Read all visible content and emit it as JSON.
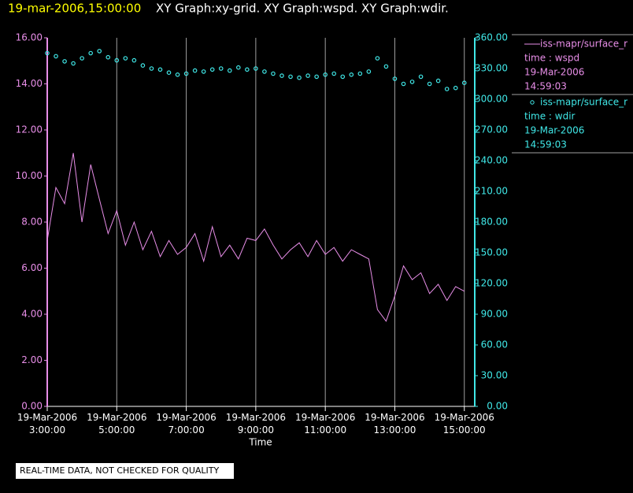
{
  "chart_data": {
    "type": "line",
    "title_time": "19-mar-2006,15:00:00",
    "title": "XY Graph:xy-grid.  XY Graph:wspd.  XY Graph:wdir.",
    "xlabel": "Time",
    "note": "REAL-TIME DATA, NOT CHECKED FOR QUALITY",
    "x": [
      3.0,
      3.25,
      3.5,
      3.75,
      4.0,
      4.25,
      4.5,
      4.75,
      5.0,
      5.25,
      5.5,
      5.75,
      6.0,
      6.25,
      6.5,
      6.75,
      7.0,
      7.25,
      7.5,
      7.75,
      8.0,
      8.25,
      8.5,
      8.75,
      9.0,
      9.25,
      9.5,
      9.75,
      10.0,
      10.25,
      10.5,
      10.75,
      11.0,
      11.25,
      11.5,
      11.75,
      12.0,
      12.25,
      12.5,
      12.75,
      13.0,
      13.25,
      13.5,
      13.75,
      14.0,
      14.25,
      14.5,
      14.75,
      15.0
    ],
    "xlim": [
      3,
      15.3
    ],
    "xticks": [
      {
        "value": 3,
        "label": "19-Mar-2006 3:00:00"
      },
      {
        "value": 5,
        "label": "19-Mar-2006 5:00:00"
      },
      {
        "value": 7,
        "label": "19-Mar-2006 7:00:00"
      },
      {
        "value": 9,
        "label": "19-Mar-2006 9:00:00"
      },
      {
        "value": 11,
        "label": "19-Mar-2006 11:00:00"
      },
      {
        "value": 13,
        "label": "19-Mar-2006 13:00:00"
      },
      {
        "value": 15,
        "label": "19-Mar-2006 15:00:00"
      }
    ],
    "ylim": [
      0,
      16
    ],
    "yticks": [
      {
        "value": 0,
        "label": "0.00"
      },
      {
        "value": 2,
        "label": "2.00"
      },
      {
        "value": 4,
        "label": "4.00"
      },
      {
        "value": 6,
        "label": "6.00"
      },
      {
        "value": 8,
        "label": "8.00"
      },
      {
        "value": 10,
        "label": "10.00"
      },
      {
        "value": 12,
        "label": "12.00"
      },
      {
        "value": 14,
        "label": "14.00"
      },
      {
        "value": 16,
        "label": "16.00"
      }
    ],
    "y2lim": [
      0,
      360
    ],
    "y2ticks": [
      {
        "value": 0,
        "label": "0.00"
      },
      {
        "value": 30,
        "label": "30.00"
      },
      {
        "value": 60,
        "label": "60.00"
      },
      {
        "value": 90,
        "label": "90.00"
      },
      {
        "value": 120,
        "label": "120.00"
      },
      {
        "value": 150,
        "label": "150.00"
      },
      {
        "value": 180,
        "label": "180.00"
      },
      {
        "value": 210,
        "label": "210.00"
      },
      {
        "value": 240,
        "label": "240.00"
      },
      {
        "value": 270,
        "label": "270.00"
      },
      {
        "value": 300,
        "label": "300.00"
      },
      {
        "value": 330,
        "label": "330.00"
      },
      {
        "value": 360,
        "label": "360.00"
      }
    ],
    "grid": true,
    "series": [
      {
        "name": "iss-mapr/surface_r",
        "legend_label": "time : wspd",
        "date": "19-Mar-2006",
        "time": "14:59:03",
        "color": "#e88ee8",
        "mode": "line",
        "values": [
          7.2,
          9.5,
          8.8,
          11.0,
          8.0,
          10.5,
          9.0,
          7.5,
          8.5,
          7.0,
          8.0,
          6.8,
          7.6,
          6.5,
          7.2,
          6.6,
          6.9,
          7.5,
          6.3,
          7.8,
          6.5,
          7.0,
          6.4,
          7.3,
          7.2,
          7.7,
          7.0,
          6.4,
          6.8,
          7.1,
          6.5,
          7.2,
          6.6,
          6.9,
          6.3,
          6.8,
          6.6,
          6.4,
          4.2,
          3.7,
          4.8,
          6.1,
          5.5,
          5.8,
          4.9,
          5.3,
          4.6,
          5.2,
          5.0
        ]
      },
      {
        "name": "iss-mapr/surface_r",
        "legend_label": "time : wdir",
        "date": "19-Mar-2006",
        "time": "14:59:03",
        "color": "#40e8e8",
        "mode": "points",
        "axis": "y2",
        "values": [
          345,
          342,
          337,
          335,
          340,
          345,
          347,
          341,
          338,
          340,
          338,
          333,
          330,
          329,
          326,
          324,
          325,
          328,
          327,
          329,
          330,
          328,
          331,
          329,
          330,
          327,
          325,
          323,
          322,
          321,
          323,
          322,
          324,
          325,
          322,
          324,
          325,
          327,
          340,
          332,
          320,
          315,
          317,
          322,
          315,
          318,
          310,
          311,
          316
        ]
      }
    ]
  }
}
